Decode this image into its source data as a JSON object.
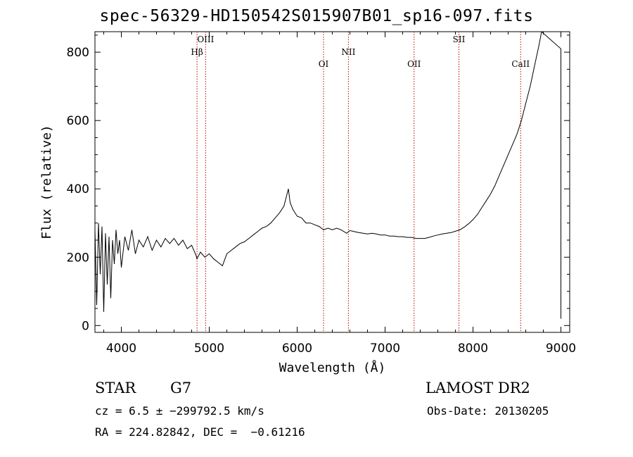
{
  "chart_data": {
    "type": "line",
    "title": "spec-56329-HD150542S015907B01_sp16-097.fits",
    "xlabel": "Wavelength (Å)",
    "ylabel": "Flux (relative)",
    "xlim": [
      3700,
      9100
    ],
    "ylim": [
      -20,
      860
    ],
    "xticks": [
      4000,
      5000,
      6000,
      7000,
      8000,
      9000
    ],
    "yticks": [
      0,
      200,
      400,
      600,
      800
    ],
    "grid": false,
    "series": [
      {
        "color": "#000000",
        "points": [
          [
            3700,
            280
          ],
          [
            3720,
            60
          ],
          [
            3740,
            300
          ],
          [
            3760,
            150
          ],
          [
            3780,
            290
          ],
          [
            3800,
            40
          ],
          [
            3820,
            270
          ],
          [
            3840,
            120
          ],
          [
            3860,
            260
          ],
          [
            3880,
            80
          ],
          [
            3900,
            250
          ],
          [
            3920,
            180
          ],
          [
            3940,
            280
          ],
          [
            3960,
            210
          ],
          [
            3980,
            250
          ],
          [
            4000,
            170
          ],
          [
            4040,
            260
          ],
          [
            4080,
            220
          ],
          [
            4120,
            280
          ],
          [
            4160,
            210
          ],
          [
            4200,
            250
          ],
          [
            4250,
            230
          ],
          [
            4300,
            260
          ],
          [
            4350,
            220
          ],
          [
            4400,
            250
          ],
          [
            4450,
            230
          ],
          [
            4500,
            255
          ],
          [
            4550,
            240
          ],
          [
            4600,
            255
          ],
          [
            4650,
            235
          ],
          [
            4700,
            250
          ],
          [
            4750,
            225
          ],
          [
            4800,
            235
          ],
          [
            4850,
            205
          ],
          [
            4860,
            195
          ],
          [
            4900,
            215
          ],
          [
            4950,
            200
          ],
          [
            5000,
            210
          ],
          [
            5050,
            195
          ],
          [
            5100,
            185
          ],
          [
            5150,
            175
          ],
          [
            5200,
            210
          ],
          [
            5250,
            220
          ],
          [
            5300,
            230
          ],
          [
            5350,
            240
          ],
          [
            5400,
            245
          ],
          [
            5450,
            255
          ],
          [
            5500,
            265
          ],
          [
            5550,
            275
          ],
          [
            5600,
            285
          ],
          [
            5650,
            290
          ],
          [
            5700,
            300
          ],
          [
            5750,
            315
          ],
          [
            5800,
            330
          ],
          [
            5850,
            350
          ],
          [
            5880,
            380
          ],
          [
            5900,
            400
          ],
          [
            5920,
            360
          ],
          [
            5950,
            340
          ],
          [
            6000,
            320
          ],
          [
            6050,
            315
          ],
          [
            6100,
            300
          ],
          [
            6150,
            300
          ],
          [
            6200,
            295
          ],
          [
            6250,
            290
          ],
          [
            6300,
            280
          ],
          [
            6350,
            285
          ],
          [
            6400,
            280
          ],
          [
            6450,
            285
          ],
          [
            6500,
            280
          ],
          [
            6563,
            270
          ],
          [
            6600,
            278
          ],
          [
            6650,
            275
          ],
          [
            6700,
            272
          ],
          [
            6750,
            270
          ],
          [
            6800,
            268
          ],
          [
            6850,
            270
          ],
          [
            6900,
            268
          ],
          [
            6950,
            265
          ],
          [
            7000,
            265
          ],
          [
            7050,
            262
          ],
          [
            7100,
            262
          ],
          [
            7150,
            260
          ],
          [
            7200,
            260
          ],
          [
            7250,
            258
          ],
          [
            7300,
            258
          ],
          [
            7350,
            255
          ],
          [
            7400,
            255
          ],
          [
            7450,
            255
          ],
          [
            7500,
            258
          ],
          [
            7550,
            262
          ],
          [
            7600,
            265
          ],
          [
            7650,
            268
          ],
          [
            7700,
            270
          ],
          [
            7750,
            272
          ],
          [
            7800,
            276
          ],
          [
            7850,
            280
          ],
          [
            7900,
            288
          ],
          [
            7950,
            298
          ],
          [
            8000,
            310
          ],
          [
            8050,
            325
          ],
          [
            8100,
            345
          ],
          [
            8150,
            365
          ],
          [
            8200,
            385
          ],
          [
            8250,
            410
          ],
          [
            8300,
            440
          ],
          [
            8350,
            470
          ],
          [
            8400,
            500
          ],
          [
            8450,
            530
          ],
          [
            8500,
            560
          ],
          [
            8550,
            600
          ],
          [
            8600,
            650
          ],
          [
            8650,
            700
          ],
          [
            8700,
            760
          ],
          [
            8750,
            820
          ],
          [
            8780,
            860
          ],
          [
            9000,
            810
          ],
          [
            9000,
            20
          ]
        ]
      }
    ],
    "lines": [
      {
        "label": "Hβ",
        "x": 4861
      },
      {
        "label": "OIII",
        "x": 4959
      },
      {
        "label": "OI",
        "x": 6300
      },
      {
        "label": "NII",
        "x": 6583
      },
      {
        "label": "OII",
        "x": 7330
      },
      {
        "label": "SII",
        "x": 7840
      },
      {
        "label": "CaII",
        "x": 8542
      }
    ],
    "line_color": "#c00000"
  },
  "info": {
    "class_label": "STAR",
    "subclass": "G7",
    "survey": "LAMOST DR2",
    "cz": "cz = 6.5 ± −299792.5 km/s",
    "obs_date": "Obs-Date: 20130205",
    "coords": "RA = 224.82842, DEC =  −0.61216"
  }
}
